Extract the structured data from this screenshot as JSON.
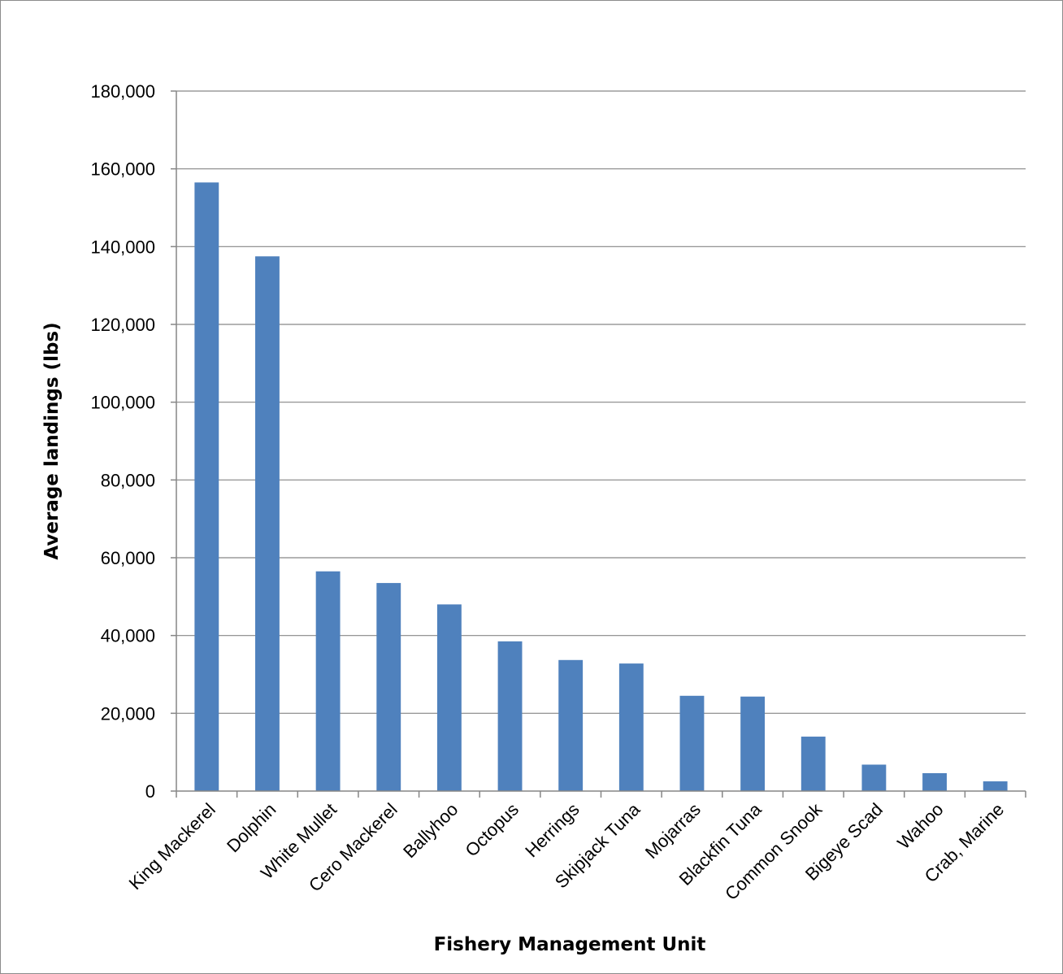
{
  "chart_data": {
    "type": "bar",
    "title": "",
    "xlabel": "Fishery Management Unit",
    "ylabel": "Average landings (lbs)",
    "ylim": [
      0,
      180000
    ],
    "yticks": [
      0,
      20000,
      40000,
      60000,
      80000,
      100000,
      120000,
      140000,
      160000,
      180000
    ],
    "ytick_labels": [
      "0",
      "20,000",
      "40,000",
      "60,000",
      "80,000",
      "100,000",
      "120,000",
      "140,000",
      "160,000",
      "180,000"
    ],
    "grid": true,
    "legend": "none",
    "bar_color": "#4f81bd",
    "categories": [
      "King Mackerel",
      "Dolphin",
      "White Mullet",
      "Cero Mackerel",
      "Ballyhoo",
      "Octopus",
      "Herrings",
      "Skipjack Tuna",
      "Mojarras",
      "Blackfin Tuna",
      "Common Snook",
      "Bigeye Scad",
      "Wahoo",
      "Crab, Marine"
    ],
    "values": [
      156500,
      137500,
      56500,
      53500,
      48000,
      38500,
      33700,
      32800,
      24500,
      24300,
      14000,
      6800,
      4600,
      2500
    ]
  }
}
